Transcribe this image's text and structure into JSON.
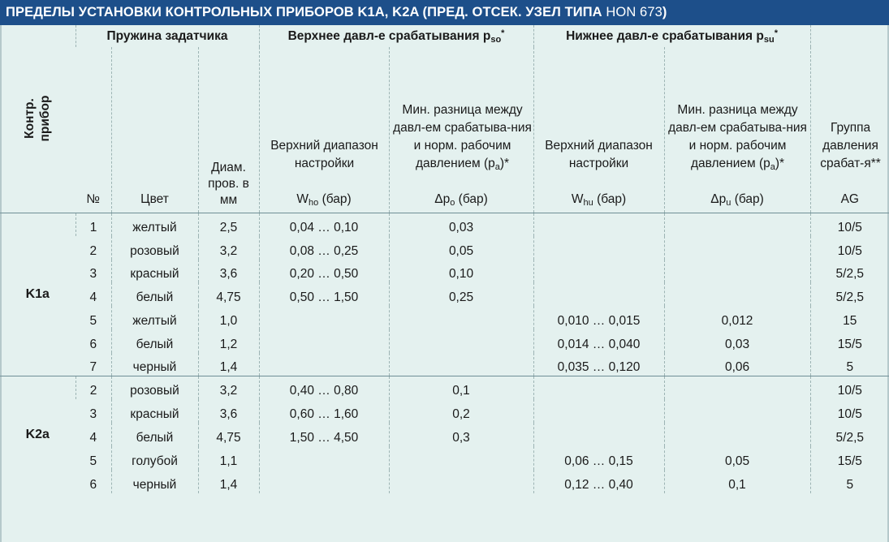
{
  "title": {
    "main": "ПРЕДЕЛЫ УСТАНОВКИ КОНТРОЛЬНЫХ ПРИБОРОВ K1A, K2A (ПРЕД. ОТСЕК. УЗЕЛ ТИПА ",
    "model": "HON 673",
    "close": ")"
  },
  "header": {
    "device": "Контр. прибор",
    "spring_group": "Пружина задатчика",
    "upper_group": "Верхнее давл-е срабатывания p",
    "upper_sub": "so",
    "upper_star": "*",
    "lower_group": "Нижнее давл-е срабатывания p",
    "lower_sub": "su",
    "lower_star": "*",
    "col_no": "№",
    "col_color": "Цвет",
    "col_diam": "Диам. пров. в мм",
    "col_upper_range": "Верхний диапазон настройки",
    "col_upper_range_unit_a": "W",
    "col_upper_range_unit_sub": "ho",
    "col_upper_range_unit_b": " (бар)",
    "col_upper_min_a": "Мин. разница между давл-ем срабатыва-ния и норм. рабочим давлением (p",
    "col_upper_min_sub": "a",
    "col_upper_min_b": ")*",
    "col_upper_min_unit_a": "Δp",
    "col_upper_min_unit_sub": "o",
    "col_upper_min_unit_b": " (бар)",
    "col_lower_range": "Верхний диапазон настройки",
    "col_lower_range_unit_a": "W",
    "col_lower_range_unit_sub": "hu",
    "col_lower_range_unit_b": " (бар)",
    "col_lower_min_a": "Мин. разница между давл-ем срабатыва-ния и норм. рабочим давлением (p",
    "col_lower_min_sub": "a",
    "col_lower_min_b": ")*",
    "col_lower_min_unit_a": "Δp",
    "col_lower_min_unit_sub": "u",
    "col_lower_min_unit_b": " (бар)",
    "col_ag": "Группа давления срабат-я**",
    "col_ag_unit": "AG"
  },
  "groups": [
    {
      "name": "K1a",
      "rows": [
        {
          "no": "1",
          "color": "желтый",
          "diam": "2,5",
          "upper_range": "0,04 … 0,10",
          "upper_min": "0,03",
          "lower_range": "",
          "lower_min": "",
          "ag": "10/5"
        },
        {
          "no": "2",
          "color": "розовый",
          "diam": "3,2",
          "upper_range": "0,08 … 0,25",
          "upper_min": "0,05",
          "lower_range": "",
          "lower_min": "",
          "ag": "10/5"
        },
        {
          "no": "3",
          "color": "красный",
          "diam": "3,6",
          "upper_range": "0,20 … 0,50",
          "upper_min": "0,10",
          "lower_range": "",
          "lower_min": "",
          "ag": "5/2,5"
        },
        {
          "no": "4",
          "color": "белый",
          "diam": "4,75",
          "upper_range": "0,50 … 1,50",
          "upper_min": "0,25",
          "lower_range": "",
          "lower_min": "",
          "ag": "5/2,5"
        },
        {
          "no": "5",
          "color": "желтый",
          "diam": "1,0",
          "upper_range": "",
          "upper_min": "",
          "lower_range": "0,010 … 0,015",
          "lower_min": "0,012",
          "ag": "15"
        },
        {
          "no": "6",
          "color": "белый",
          "diam": "1,2",
          "upper_range": "",
          "upper_min": "",
          "lower_range": "0,014 … 0,040",
          "lower_min": "0,03",
          "ag": "15/5"
        },
        {
          "no": "7",
          "color": "черный",
          "diam": "1,4",
          "upper_range": "",
          "upper_min": "",
          "lower_range": "0,035 … 0,120",
          "lower_min": "0,06",
          "ag": "5"
        }
      ]
    },
    {
      "name": "K2a",
      "rows": [
        {
          "no": "2",
          "color": "розовый",
          "diam": "3,2",
          "upper_range": "0,40 … 0,80",
          "upper_min": "0,1",
          "lower_range": "",
          "lower_min": "",
          "ag": "10/5"
        },
        {
          "no": "3",
          "color": "красный",
          "diam": "3,6",
          "upper_range": "0,60 … 1,60",
          "upper_min": "0,2",
          "lower_range": "",
          "lower_min": "",
          "ag": "10/5"
        },
        {
          "no": "4",
          "color": "белый",
          "diam": "4,75",
          "upper_range": "1,50 … 4,50",
          "upper_min": "0,3",
          "lower_range": "",
          "lower_min": "",
          "ag": "5/2,5"
        },
        {
          "no": "5",
          "color": "голубой",
          "diam": "1,1",
          "upper_range": "",
          "upper_min": "",
          "lower_range": "0,06 … 0,15",
          "lower_min": "0,05",
          "ag": "15/5"
        },
        {
          "no": "6",
          "color": "черный",
          "diam": "1,4",
          "upper_range": "",
          "upper_min": "",
          "lower_range": "0,12 … 0,40",
          "lower_min": "0,1",
          "ag": "5"
        }
      ]
    }
  ],
  "colors": {
    "title_bg": "#1d4f8a",
    "table_bg": "#e4f1ef"
  }
}
